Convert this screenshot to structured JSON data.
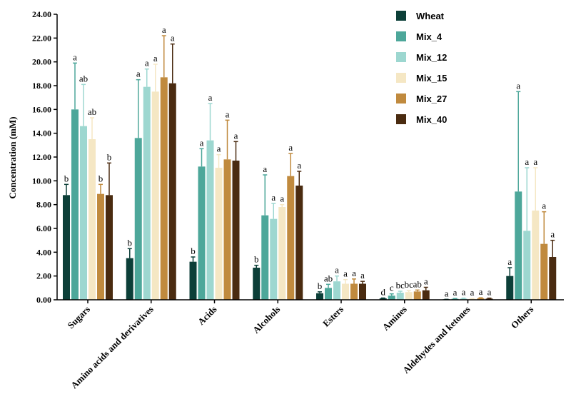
{
  "chart_data": {
    "type": "bar",
    "title": "",
    "xlabel": "",
    "ylabel": "Concentration (mM)",
    "ylim": [
      0,
      24
    ],
    "yticks": [
      "0.00",
      "2.00",
      "4.00",
      "6.00",
      "8.00",
      "10.00",
      "12.00",
      "14.00",
      "16.00",
      "18.00",
      "20.00",
      "22.00",
      "24.00"
    ],
    "legend_position": "top-right",
    "categories": [
      "Sugars",
      "Amino acids and derivatives",
      "Acids",
      "Alcohols",
      "Esters",
      "Amines",
      "Aldehydes and ketones",
      "Others"
    ],
    "series": [
      {
        "name": "Wheat",
        "color": "#0c3f38",
        "values": [
          8.8,
          3.5,
          3.2,
          2.7,
          0.55,
          0.12,
          0.02,
          2.0
        ],
        "errors": [
          0.9,
          0.8,
          0.4,
          0.2,
          0.12,
          0.03,
          0.02,
          0.7
        ],
        "labels": [
          "b",
          "b",
          "b",
          "b",
          "b",
          "d",
          "a",
          "a"
        ]
      },
      {
        "name": "Mix_4",
        "color": "#4da79a",
        "values": [
          16.0,
          13.6,
          11.2,
          7.1,
          1.0,
          0.35,
          0.08,
          9.1
        ],
        "errors": [
          3.9,
          4.9,
          1.5,
          3.4,
          0.3,
          0.15,
          0.03,
          8.4
        ],
        "labels": [
          "a",
          "a",
          "a",
          "a",
          "ab",
          "c",
          "a",
          "a"
        ]
      },
      {
        "name": "Mix_12",
        "color": "#9dd7d0",
        "values": [
          14.6,
          17.9,
          13.4,
          6.8,
          1.55,
          0.6,
          0.1,
          5.8
        ],
        "errors": [
          3.5,
          1.5,
          3.1,
          1.3,
          0.45,
          0.12,
          0.04,
          5.3
        ],
        "labels": [
          "ab",
          "a",
          "a",
          "a",
          "a",
          "bc",
          "a",
          "a"
        ]
      },
      {
        "name": "Mix_15",
        "color": "#f5e7c4",
        "values": [
          13.5,
          17.5,
          11.1,
          7.8,
          1.35,
          0.65,
          0.08,
          7.5
        ],
        "errors": [
          1.8,
          2.3,
          1.1,
          0.2,
          0.35,
          0.12,
          0.03,
          3.6
        ],
        "labels": [
          "ab",
          "a",
          "a",
          "a",
          "a",
          "bc",
          "a",
          "a"
        ]
      },
      {
        "name": "Mix_27",
        "color": "#c08a3e",
        "values": [
          8.9,
          18.7,
          11.8,
          10.4,
          1.35,
          0.7,
          0.13,
          4.7
        ],
        "errors": [
          0.8,
          3.5,
          3.3,
          1.9,
          0.4,
          0.12,
          0.04,
          2.7
        ],
        "labels": [
          "b",
          "a",
          "a",
          "a",
          "a",
          "ab",
          "a",
          "a"
        ]
      },
      {
        "name": "Mix_40",
        "color": "#4a2b10",
        "values": [
          8.8,
          18.2,
          11.7,
          9.6,
          1.35,
          0.8,
          0.1,
          3.6
        ],
        "errors": [
          2.7,
          3.3,
          1.6,
          1.2,
          0.2,
          0.25,
          0.04,
          1.4
        ],
        "labels": [
          "b",
          "a",
          "a",
          "a",
          "a",
          "a",
          "a",
          "a"
        ]
      }
    ]
  }
}
